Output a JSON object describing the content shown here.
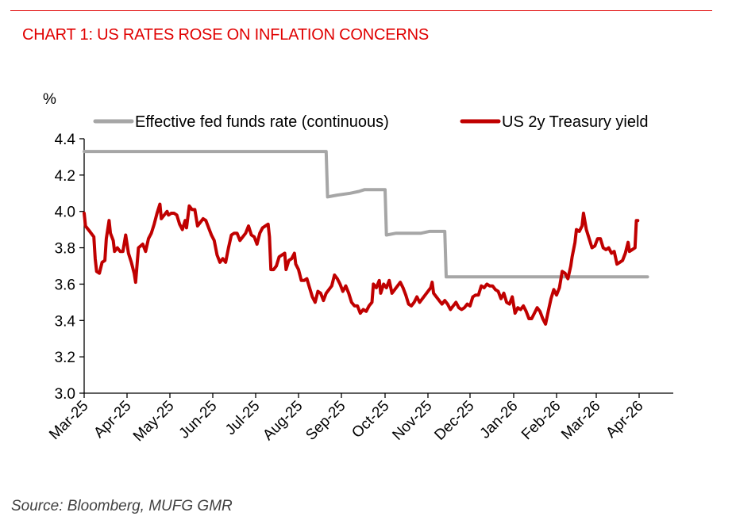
{
  "header": {
    "title": "CHART 1: US RATES ROSE ON INFLATION CONCERNS"
  },
  "footer": {
    "source": "Source: Bloomberg, MUFG GMR"
  },
  "colors": {
    "accent": "#e00000",
    "fed_funds": "#a6a6a6",
    "treasury_2y": "#c00000"
  },
  "chart_data": {
    "type": "line",
    "title": "CHART 1: US RATES ROSE ON INFLATION CONCERNS",
    "xlabel": "",
    "ylabel": "%",
    "ylim": [
      3.0,
      4.4
    ],
    "yticks": [
      "3.0",
      "3.2",
      "3.4",
      "3.6",
      "3.8",
      "4.0",
      "4.2",
      "4.4"
    ],
    "xticks": [
      "Mar-25",
      "Apr-25",
      "May-25",
      "Jun-25",
      "Jul-25",
      "Aug-25",
      "Sep-25",
      "Oct-25",
      "Nov-25",
      "Dec-25",
      "Jan-26",
      "Feb-26",
      "Mar-26",
      "Apr-26"
    ],
    "x_unit": "days since 1 Mar 2025",
    "xlim": [
      0,
      450
    ],
    "grid": false,
    "legend": "top",
    "series": [
      {
        "name": "Effective fed funds rate (continuous)",
        "color": "#a6a6a6",
        "points": [
          [
            0,
            4.33
          ],
          [
            173,
            4.33
          ],
          [
            174,
            4.08
          ],
          [
            181,
            4.09
          ],
          [
            190,
            4.1
          ],
          [
            196,
            4.11
          ],
          [
            200,
            4.12
          ],
          [
            214,
            4.12
          ],
          [
            215,
            3.87
          ],
          [
            222,
            3.88
          ],
          [
            240,
            3.88
          ],
          [
            246,
            3.89
          ],
          [
            257,
            3.89
          ],
          [
            258,
            3.64
          ],
          [
            402,
            3.64
          ]
        ]
      },
      {
        "name": "US 2y Treasury yield",
        "color": "#c00000",
        "points": [
          [
            0,
            3.99
          ],
          [
            1,
            3.92
          ],
          [
            4,
            3.89
          ],
          [
            7,
            3.86
          ],
          [
            8,
            3.74
          ],
          [
            9,
            3.67
          ],
          [
            11,
            3.66
          ],
          [
            13,
            3.72
          ],
          [
            15,
            3.73
          ],
          [
            16,
            3.85
          ],
          [
            18,
            3.95
          ],
          [
            19,
            3.88
          ],
          [
            21,
            3.84
          ],
          [
            22,
            3.78
          ],
          [
            24,
            3.8
          ],
          [
            26,
            3.78
          ],
          [
            28,
            3.78
          ],
          [
            30,
            3.87
          ],
          [
            32,
            3.77
          ],
          [
            34,
            3.72
          ],
          [
            36,
            3.66
          ],
          [
            37,
            3.61
          ],
          [
            39,
            3.8
          ],
          [
            42,
            3.82
          ],
          [
            44,
            3.78
          ],
          [
            46,
            3.85
          ],
          [
            48,
            3.88
          ],
          [
            50,
            3.93
          ],
          [
            52,
            3.99
          ],
          [
            54,
            4.04
          ],
          [
            55,
            3.96
          ],
          [
            57,
            3.98
          ],
          [
            59,
            4.0
          ],
          [
            60,
            3.98
          ],
          [
            62,
            3.99
          ],
          [
            64,
            3.99
          ],
          [
            66,
            3.98
          ],
          [
            68,
            3.93
          ],
          [
            70,
            3.9
          ],
          [
            72,
            3.95
          ],
          [
            73,
            3.91
          ],
          [
            75,
            4.03
          ],
          [
            77,
            4.01
          ],
          [
            79,
            4.01
          ],
          [
            81,
            3.92
          ],
          [
            83,
            3.94
          ],
          [
            85,
            3.96
          ],
          [
            87,
            3.95
          ],
          [
            89,
            3.91
          ],
          [
            91,
            3.87
          ],
          [
            93,
            3.84
          ],
          [
            95,
            3.76
          ],
          [
            97,
            3.72
          ],
          [
            99,
            3.74
          ],
          [
            101,
            3.72
          ],
          [
            103,
            3.8
          ],
          [
            105,
            3.87
          ],
          [
            107,
            3.88
          ],
          [
            109,
            3.88
          ],
          [
            111,
            3.84
          ],
          [
            113,
            3.86
          ],
          [
            115,
            3.88
          ],
          [
            117,
            3.92
          ],
          [
            119,
            3.87
          ],
          [
            121,
            3.86
          ],
          [
            123,
            3.82
          ],
          [
            125,
            3.88
          ],
          [
            127,
            3.91
          ],
          [
            129,
            3.92
          ],
          [
            131,
            3.93
          ],
          [
            132,
            3.86
          ],
          [
            133,
            3.68
          ],
          [
            135,
            3.68
          ],
          [
            137,
            3.7
          ],
          [
            139,
            3.75
          ],
          [
            141,
            3.76
          ],
          [
            143,
            3.77
          ],
          [
            144,
            3.68
          ],
          [
            146,
            3.73
          ],
          [
            148,
            3.74
          ],
          [
            150,
            3.77
          ],
          [
            151,
            3.71
          ],
          [
            153,
            3.68
          ],
          [
            155,
            3.62
          ],
          [
            157,
            3.62
          ],
          [
            159,
            3.63
          ],
          [
            161,
            3.58
          ],
          [
            163,
            3.53
          ],
          [
            165,
            3.5
          ],
          [
            167,
            3.56
          ],
          [
            169,
            3.55
          ],
          [
            171,
            3.51
          ],
          [
            173,
            3.55
          ],
          [
            175,
            3.57
          ],
          [
            177,
            3.59
          ],
          [
            179,
            3.65
          ],
          [
            181,
            3.63
          ],
          [
            183,
            3.6
          ],
          [
            185,
            3.56
          ],
          [
            187,
            3.59
          ],
          [
            189,
            3.55
          ],
          [
            191,
            3.5
          ],
          [
            193,
            3.48
          ],
          [
            195,
            3.48
          ],
          [
            197,
            3.44
          ],
          [
            199,
            3.46
          ],
          [
            201,
            3.45
          ],
          [
            203,
            3.48
          ],
          [
            205,
            3.5
          ],
          [
            206,
            3.6
          ],
          [
            208,
            3.58
          ],
          [
            210,
            3.62
          ],
          [
            211,
            3.55
          ],
          [
            213,
            3.6
          ],
          [
            215,
            3.58
          ],
          [
            217,
            3.62
          ],
          [
            219,
            3.55
          ],
          [
            221,
            3.57
          ],
          [
            223,
            3.59
          ],
          [
            225,
            3.61
          ],
          [
            227,
            3.58
          ],
          [
            229,
            3.54
          ],
          [
            231,
            3.49
          ],
          [
            233,
            3.48
          ],
          [
            235,
            3.5
          ],
          [
            237,
            3.53
          ],
          [
            239,
            3.5
          ],
          [
            241,
            3.52
          ],
          [
            243,
            3.54
          ],
          [
            245,
            3.56
          ],
          [
            247,
            3.58
          ],
          [
            248,
            3.61
          ],
          [
            249,
            3.55
          ],
          [
            251,
            3.53
          ],
          [
            253,
            3.51
          ],
          [
            255,
            3.49
          ],
          [
            257,
            3.51
          ],
          [
            259,
            3.49
          ],
          [
            261,
            3.46
          ],
          [
            263,
            3.48
          ],
          [
            265,
            3.5
          ],
          [
            267,
            3.47
          ],
          [
            269,
            3.46
          ],
          [
            271,
            3.47
          ],
          [
            273,
            3.49
          ],
          [
            275,
            3.48
          ],
          [
            277,
            3.53
          ],
          [
            279,
            3.54
          ],
          [
            281,
            3.54
          ],
          [
            283,
            3.59
          ],
          [
            285,
            3.58
          ],
          [
            287,
            3.6
          ],
          [
            289,
            3.59
          ],
          [
            291,
            3.59
          ],
          [
            293,
            3.57
          ],
          [
            295,
            3.56
          ],
          [
            297,
            3.52
          ],
          [
            299,
            3.55
          ],
          [
            301,
            3.5
          ],
          [
            303,
            3.49
          ],
          [
            305,
            3.53
          ],
          [
            307,
            3.44
          ],
          [
            309,
            3.47
          ],
          [
            311,
            3.46
          ],
          [
            313,
            3.48
          ],
          [
            315,
            3.45
          ],
          [
            317,
            3.41
          ],
          [
            319,
            3.41
          ],
          [
            321,
            3.44
          ],
          [
            323,
            3.47
          ],
          [
            325,
            3.45
          ],
          [
            327,
            3.41
          ],
          [
            329,
            3.38
          ],
          [
            331,
            3.45
          ],
          [
            333,
            3.52
          ],
          [
            335,
            3.57
          ],
          [
            337,
            3.54
          ],
          [
            339,
            3.58
          ],
          [
            341,
            3.67
          ],
          [
            343,
            3.66
          ],
          [
            345,
            3.63
          ],
          [
            347,
            3.7
          ],
          [
            348,
            3.75
          ],
          [
            350,
            3.83
          ],
          [
            351,
            3.9
          ],
          [
            353,
            3.89
          ],
          [
            355,
            3.92
          ],
          [
            356,
            3.99
          ],
          [
            358,
            3.9
          ],
          [
            360,
            3.85
          ],
          [
            362,
            3.8
          ],
          [
            364,
            3.81
          ],
          [
            366,
            3.85
          ],
          [
            368,
            3.85
          ],
          [
            370,
            3.8
          ],
          [
            372,
            3.79
          ],
          [
            374,
            3.8
          ],
          [
            376,
            3.77
          ],
          [
            378,
            3.78
          ],
          [
            380,
            3.71
          ],
          [
            382,
            3.72
          ],
          [
            384,
            3.73
          ],
          [
            386,
            3.77
          ],
          [
            388,
            3.83
          ],
          [
            389,
            3.78
          ],
          [
            391,
            3.79
          ],
          [
            393,
            3.8
          ],
          [
            394,
            3.95
          ],
          [
            395,
            3.95
          ]
        ]
      }
    ]
  }
}
